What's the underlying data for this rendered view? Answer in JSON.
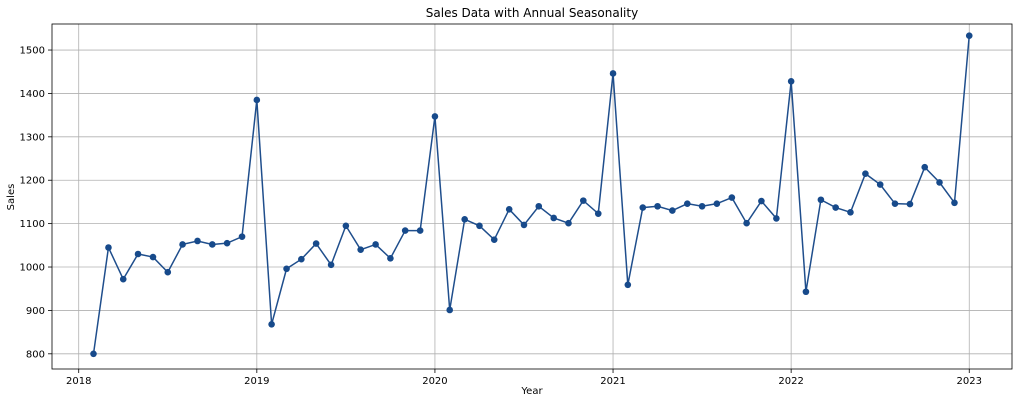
{
  "chart_data": {
    "type": "line",
    "title": "Sales Data with Annual Seasonality",
    "xlabel": "Year",
    "ylabel": "Sales",
    "grid": true,
    "line_color": "#1f4e8c",
    "marker_color": "#174a8b",
    "grid_color": "#b0b0b0",
    "xlim": [
      2017.85,
      2023.24
    ],
    "ylim": [
      765,
      1560
    ],
    "xticks": [
      {
        "value": 2018,
        "label": "2018"
      },
      {
        "value": 2019,
        "label": "2019"
      },
      {
        "value": 2020,
        "label": "2020"
      },
      {
        "value": 2021,
        "label": "2021"
      },
      {
        "value": 2022,
        "label": "2022"
      },
      {
        "value": 2023,
        "label": "2023"
      }
    ],
    "yticks": [
      {
        "value": 800,
        "label": "800"
      },
      {
        "value": 900,
        "label": "900"
      },
      {
        "value": 1000,
        "label": "1000"
      },
      {
        "value": 1100,
        "label": "1100"
      },
      {
        "value": 1200,
        "label": "1200"
      },
      {
        "value": 1300,
        "label": "1300"
      },
      {
        "value": 1400,
        "label": "1400"
      },
      {
        "value": 1500,
        "label": "1500"
      }
    ],
    "series": [
      {
        "name": "Sales",
        "x": [
          2018.083,
          2018.167,
          2018.25,
          2018.333,
          2018.417,
          2018.5,
          2018.583,
          2018.667,
          2018.75,
          2018.833,
          2018.917,
          2019.0,
          2019.083,
          2019.167,
          2019.25,
          2019.333,
          2019.417,
          2019.5,
          2019.583,
          2019.667,
          2019.75,
          2019.833,
          2019.917,
          2020.0,
          2020.083,
          2020.167,
          2020.25,
          2020.333,
          2020.417,
          2020.5,
          2020.583,
          2020.667,
          2020.75,
          2020.833,
          2020.917,
          2021.0,
          2021.083,
          2021.167,
          2021.25,
          2021.333,
          2021.417,
          2021.5,
          2021.583,
          2021.667,
          2021.75,
          2021.833,
          2021.917,
          2022.0,
          2022.083,
          2022.167,
          2022.25,
          2022.333,
          2022.417,
          2022.5,
          2022.583,
          2022.667,
          2022.75,
          2022.833,
          2022.917,
          2023.0
        ],
        "values": [
          800,
          1045,
          972,
          1030,
          1023,
          988,
          1052,
          1060,
          1052,
          1055,
          1070,
          1385,
          868,
          996,
          1018,
          1054,
          1005,
          1095,
          1040,
          1052,
          1020,
          1084,
          1084,
          1347,
          901,
          1110,
          1095,
          1063,
          1133,
          1097,
          1140,
          1113,
          1101,
          1153,
          1123,
          1446,
          959,
          1137,
          1140,
          1130,
          1146,
          1140,
          1146,
          1160,
          1101,
          1152,
          1112,
          1428,
          943,
          1155,
          1137,
          1126,
          1215,
          1190,
          1146,
          1145,
          1230,
          1195,
          1148,
          1533
        ]
      }
    ]
  }
}
